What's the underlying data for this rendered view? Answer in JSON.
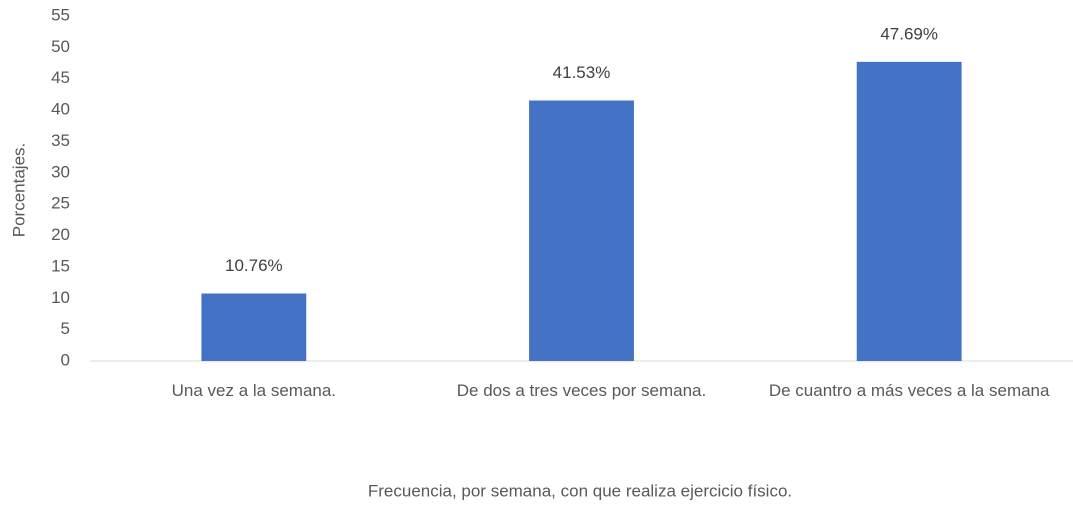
{
  "chart_data": {
    "type": "bar",
    "categories": [
      "Una vez a la semana.",
      "De dos a tres veces por semana.",
      "De cuantro a más veces a la semana"
    ],
    "values": [
      10.76,
      41.53,
      47.69
    ],
    "value_labels": [
      "10.76%",
      "41.53%",
      "47.69%"
    ],
    "color": "#4472c4",
    "xlabel": "Frecuencia, por semana, con que realiza ejercicio físico.",
    "ylabel": "Porcentajes.",
    "ylim": [
      0,
      55
    ],
    "yticks": [
      0,
      5,
      10,
      15,
      20,
      25,
      30,
      35,
      40,
      45,
      50,
      55
    ],
    "grid": false
  }
}
